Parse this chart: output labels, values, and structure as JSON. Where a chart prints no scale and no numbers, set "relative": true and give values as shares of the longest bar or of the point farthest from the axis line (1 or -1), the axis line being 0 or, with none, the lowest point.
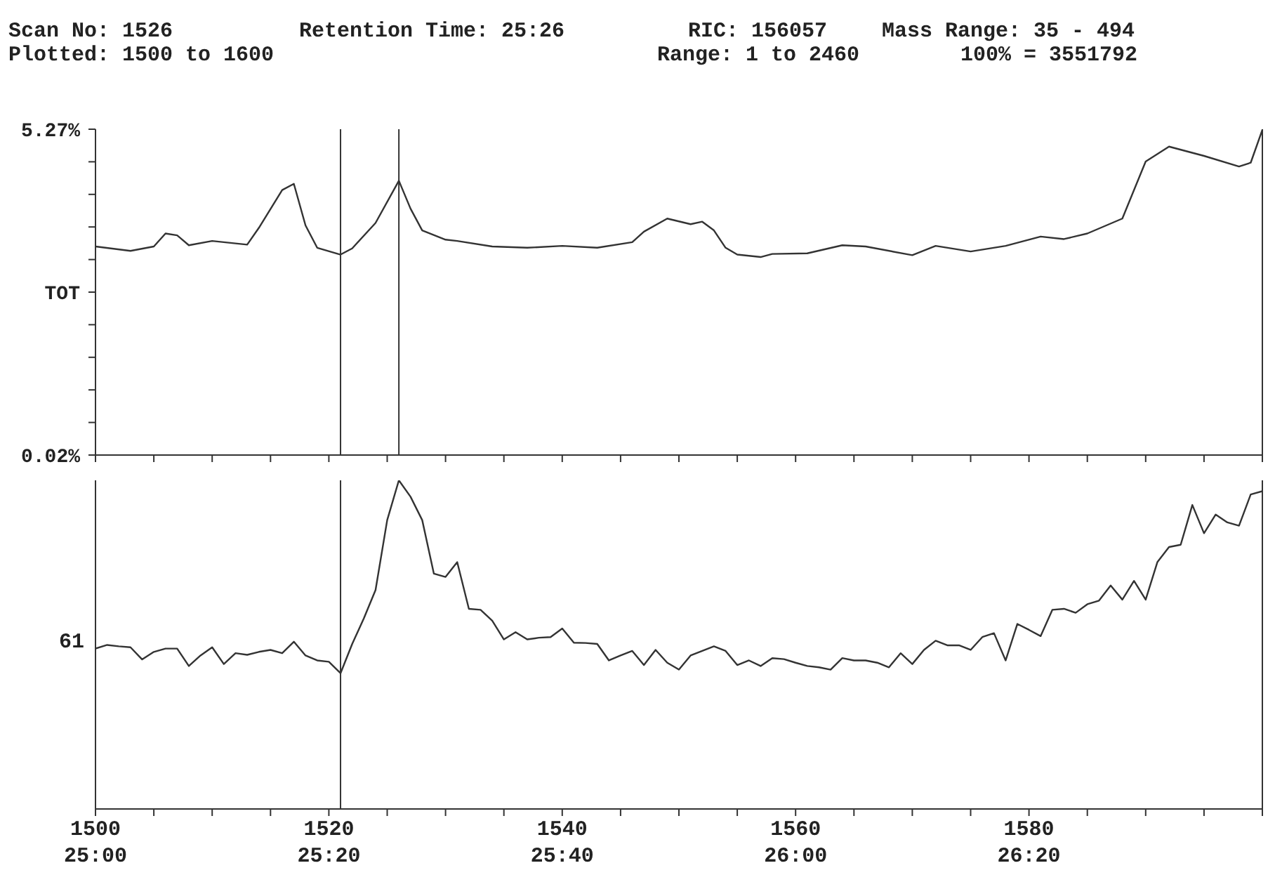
{
  "chart_data": [
    {
      "type": "line",
      "annotations": [
        "Scan No: 1526",
        "Retention Time: 25:26",
        "RIC: 156057",
        "Mass Range: 35 - 494",
        "Plotted: 1500 to 1600",
        "Range: 1 to 2460",
        "100% = 3551792"
      ],
      "x": [
        1500,
        1503,
        1505,
        1506,
        1507,
        1508,
        1510,
        1513,
        1514,
        1516,
        1517,
        1518,
        1519,
        1521,
        1522,
        1524,
        1526,
        1527,
        1528,
        1530,
        1531,
        1534,
        1537,
        1540,
        1543,
        1546,
        1547,
        1549,
        1551,
        1552,
        1553,
        1554,
        1555,
        1557,
        1558,
        1561,
        1564,
        1566,
        1570,
        1572,
        1575,
        1578,
        1581,
        1583,
        1585,
        1588,
        1590,
        1592,
        1595,
        1598,
        1599,
        1600
      ],
      "series": [
        {
          "color": "#333333",
          "values": [
            3.38,
            3.31,
            3.38,
            3.59,
            3.56,
            3.4,
            3.47,
            3.41,
            3.68,
            4.29,
            4.39,
            3.72,
            3.36,
            3.25,
            3.35,
            3.76,
            4.44,
            3.99,
            3.64,
            3.49,
            3.47,
            3.38,
            3.36,
            3.39,
            3.36,
            3.45,
            3.62,
            3.83,
            3.74,
            3.78,
            3.64,
            3.36,
            3.25,
            3.21,
            3.26,
            3.27,
            3.4,
            3.38,
            3.24,
            3.39,
            3.3,
            3.39,
            3.54,
            3.5,
            3.59,
            3.83,
            4.75,
            4.99,
            4.84,
            4.67,
            4.73,
            5.26
          ]
        }
      ],
      "xlim": [
        1500,
        1600
      ],
      "xticks": [
        1500,
        {
          "value": 1505,
          "label": null
        },
        {
          "value": 1510,
          "label": null
        },
        {
          "value": 1515,
          "label": null
        },
        1520,
        {
          "value": 1525,
          "label": null
        },
        {
          "value": 1530,
          "label": null
        },
        {
          "value": 1535,
          "label": null
        },
        1540,
        {
          "value": 1545,
          "label": null
        },
        {
          "value": 1550,
          "label": null
        },
        {
          "value": 1555,
          "label": null
        },
        1560,
        {
          "value": 1565,
          "label": null
        },
        {
          "value": 1570,
          "label": null
        },
        {
          "value": 1575,
          "label": null
        },
        1580,
        {
          "value": 1585,
          "label": null
        },
        {
          "value": 1590,
          "label": null
        },
        {
          "value": 1595,
          "label": null
        },
        {
          "value": 1600,
          "label": null
        }
      ],
      "ylim": [
        0.02,
        5.27
      ],
      "yticks": [
        {
          "value": 0.02,
          "label": "0.02%"
        },
        {
          "value": 0.545,
          "label": null
        },
        {
          "value": 1.07,
          "label": null
        },
        {
          "value": 1.595,
          "label": null
        },
        {
          "value": 2.12,
          "label": null
        },
        {
          "value": 2.645,
          "label": "TOT"
        },
        {
          "value": 3.17,
          "label": null
        },
        {
          "value": 3.695,
          "label": null
        },
        {
          "value": 4.22,
          "label": null
        },
        {
          "value": 4.745,
          "label": null
        },
        {
          "value": 5.27,
          "label": "5.27%"
        }
      ],
      "tick_labels": "y",
      "ref_lines": [
        {
          "axis": "x",
          "value": 1521
        },
        {
          "axis": "x",
          "value": 1526
        }
      ]
    },
    {
      "type": "line",
      "relative": true,
      "x": [
        1500,
        1501,
        1502,
        1503,
        1504,
        1505,
        1506,
        1507,
        1508,
        1509,
        1510,
        1511,
        1512,
        1513,
        1514,
        1515,
        1516,
        1517,
        1518,
        1519,
        1520,
        1521,
        1522,
        1523,
        1524,
        1525,
        1526,
        1527,
        1528,
        1529,
        1530,
        1531,
        1532,
        1533,
        1534,
        1535,
        1536,
        1537,
        1538,
        1539,
        1540,
        1541,
        1542,
        1543,
        1544,
        1545,
        1546,
        1547,
        1548,
        1549,
        1550,
        1551,
        1552,
        1553,
        1554,
        1555,
        1556,
        1557,
        1558,
        1559,
        1560,
        1561,
        1562,
        1563,
        1564,
        1565,
        1566,
        1567,
        1568,
        1569,
        1570,
        1571,
        1572,
        1573,
        1574,
        1575,
        1576,
        1577,
        1578,
        1579,
        1580,
        1581,
        1582,
        1583,
        1584,
        1585,
        1586,
        1587,
        1588,
        1589,
        1590,
        1591,
        1592,
        1593,
        1594,
        1595,
        1596,
        1597,
        1598,
        1599,
        1600
      ],
      "series": [
        {
          "name": "61",
          "color": "#333333",
          "values": [
            0.488,
            0.499,
            0.495,
            0.492,
            0.455,
            0.478,
            0.488,
            0.488,
            0.435,
            0.467,
            0.492,
            0.441,
            0.474,
            0.469,
            0.478,
            0.484,
            0.474,
            0.509,
            0.467,
            0.452,
            0.448,
            0.413,
            0.502,
            0.58,
            0.666,
            0.879,
            1,
            0.95,
            0.879,
            0.716,
            0.706,
            0.751,
            0.609,
            0.606,
            0.573,
            0.516,
            0.538,
            0.516,
            0.521,
            0.523,
            0.549,
            0.506,
            0.505,
            0.502,
            0.452,
            0.467,
            0.481,
            0.438,
            0.484,
            0.445,
            0.424,
            0.467,
            0.481,
            0.495,
            0.481,
            0.438,
            0.452,
            0.435,
            0.459,
            0.456,
            0.445,
            0.435,
            0.431,
            0.424,
            0.459,
            0.452,
            0.452,
            0.445,
            0.431,
            0.474,
            0.441,
            0.484,
            0.512,
            0.498,
            0.498,
            0.484,
            0.523,
            0.535,
            0.452,
            0.563,
            0.545,
            0.526,
            0.606,
            0.609,
            0.597,
            0.623,
            0.634,
            0.68,
            0.637,
            0.694,
            0.637,
            0.751,
            0.797,
            0.804,
            0.925,
            0.839,
            0.896,
            0.872,
            0.862,
            0.957,
            0.967
          ]
        }
      ],
      "xlim": [
        1500,
        1600
      ],
      "xticks": [
        1500,
        {
          "value": 1505,
          "label": null
        },
        {
          "value": 1510,
          "label": null
        },
        {
          "value": 1515,
          "label": null
        },
        1520,
        {
          "value": 1525,
          "label": null
        },
        {
          "value": 1530,
          "label": null
        },
        {
          "value": 1535,
          "label": null
        },
        1540,
        {
          "value": 1545,
          "label": null
        },
        {
          "value": 1550,
          "label": null
        },
        {
          "value": 1555,
          "label": null
        },
        1560,
        {
          "value": 1565,
          "label": null
        },
        {
          "value": 1570,
          "label": null
        },
        {
          "value": 1575,
          "label": null
        },
        1580,
        {
          "value": 1585,
          "label": null
        },
        {
          "value": 1590,
          "label": null
        },
        {
          "value": 1595,
          "label": null
        },
        {
          "value": 1600,
          "label": null
        }
      ],
      "x2lim": [
        1500,
        1600
      ],
      "x2ticks": [
        {
          "value": 1500,
          "label": "25:00"
        },
        {
          "value": 1520,
          "label": "25:20"
        },
        {
          "value": 1540,
          "label": "25:40"
        },
        {
          "value": 1560,
          "label": "26:00"
        },
        {
          "value": 1580,
          "label": "26:20"
        }
      ],
      "tick_labels": "x",
      "ref_lines": [
        {
          "axis": "x",
          "value": 1521
        }
      ]
    }
  ]
}
